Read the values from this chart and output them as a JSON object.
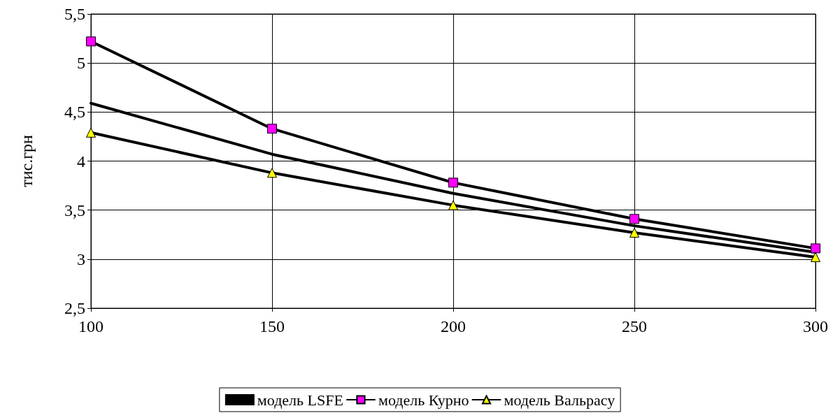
{
  "chart_data": {
    "type": "line",
    "ylabel": "тис.грн",
    "x": [
      100,
      150,
      200,
      250,
      300
    ],
    "xlim": [
      100,
      300
    ],
    "xticks": [
      100,
      150,
      200,
      250,
      300
    ],
    "ylim": [
      2.5,
      5.5
    ],
    "yticks": [
      {
        "value": 2.5,
        "label": "2,5"
      },
      {
        "value": 3,
        "label": "3"
      },
      {
        "value": 3.5,
        "label": "3,5"
      },
      {
        "value": 4,
        "label": "4"
      },
      {
        "value": 4.5,
        "label": "4,5"
      },
      {
        "value": 5,
        "label": "5"
      },
      {
        "value": 5.5,
        "label": "5,5"
      }
    ],
    "grid": true,
    "legend": "bottom",
    "series": [
      {
        "name": "модель LSFE",
        "color": "#000000",
        "marker": "none",
        "values": [
          4.59,
          4.07,
          3.67,
          3.34,
          3.07
        ]
      },
      {
        "name": "модель Курно",
        "color": "#ff00ff",
        "marker": "square",
        "values": [
          5.22,
          4.33,
          3.78,
          3.41,
          3.11
        ]
      },
      {
        "name": "модель Вальрасу",
        "color": "#ffff00",
        "marker": "triangle",
        "values": [
          4.29,
          3.88,
          3.55,
          3.27,
          3.02
        ]
      }
    ]
  }
}
